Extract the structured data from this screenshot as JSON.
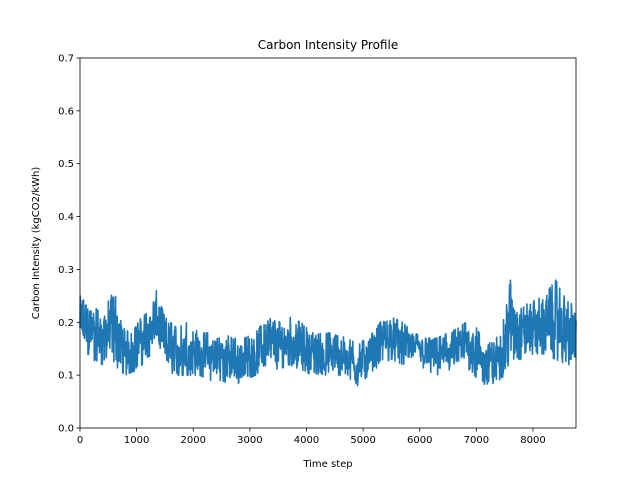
{
  "chart_data": {
    "type": "line",
    "title": "Carbon Intensity Profile",
    "xlabel": "Time step",
    "ylabel": "Carbon Intensity (kgCO2/kWh)",
    "xlim": [
      0,
      8760
    ],
    "ylim": [
      0,
      0.7
    ],
    "xticks": [
      0,
      1000,
      2000,
      3000,
      4000,
      5000,
      6000,
      7000,
      8000
    ],
    "xtick_labels": [
      "0",
      "1000",
      "2000",
      "3000",
      "4000",
      "5000",
      "6000",
      "7000",
      "8000"
    ],
    "yticks": [
      0.0,
      0.1,
      0.2,
      0.3,
      0.4,
      0.5,
      0.6,
      0.7
    ],
    "ytick_labels": [
      "0.0",
      "0.1",
      "0.2",
      "0.3",
      "0.4",
      "0.5",
      "0.6",
      "0.7"
    ],
    "grid": false,
    "legend": "none",
    "series": [
      {
        "color": "#1f77b4",
        "x": [
          0,
          200,
          400,
          600,
          800,
          1000,
          1200,
          1350,
          1500,
          1700,
          1900,
          2100,
          2300,
          2500,
          2700,
          2900,
          3100,
          3300,
          3500,
          3700,
          3900,
          4100,
          4300,
          4500,
          4700,
          4900,
          5100,
          5300,
          5500,
          5700,
          5900,
          6100,
          6300,
          6500,
          6700,
          6900,
          7100,
          7300,
          7500,
          7600,
          7800,
          8000,
          8200,
          8400,
          8600,
          8760
        ],
        "envelope_low": [
          0.15,
          0.13,
          0.12,
          0.12,
          0.1,
          0.11,
          0.13,
          0.16,
          0.11,
          0.1,
          0.1,
          0.1,
          0.09,
          0.09,
          0.08,
          0.09,
          0.1,
          0.12,
          0.11,
          0.12,
          0.11,
          0.1,
          0.1,
          0.1,
          0.1,
          0.08,
          0.1,
          0.12,
          0.13,
          0.12,
          0.13,
          0.11,
          0.1,
          0.11,
          0.11,
          0.11,
          0.08,
          0.08,
          0.1,
          0.13,
          0.13,
          0.14,
          0.14,
          0.13,
          0.12,
          0.12
        ],
        "envelope_high": [
          0.25,
          0.23,
          0.22,
          0.26,
          0.18,
          0.2,
          0.22,
          0.26,
          0.21,
          0.19,
          0.2,
          0.18,
          0.18,
          0.18,
          0.17,
          0.17,
          0.18,
          0.21,
          0.2,
          0.21,
          0.2,
          0.18,
          0.18,
          0.18,
          0.17,
          0.16,
          0.17,
          0.2,
          0.21,
          0.2,
          0.18,
          0.17,
          0.17,
          0.18,
          0.19,
          0.21,
          0.17,
          0.16,
          0.21,
          0.28,
          0.23,
          0.24,
          0.25,
          0.28,
          0.24,
          0.23
        ]
      }
    ]
  }
}
